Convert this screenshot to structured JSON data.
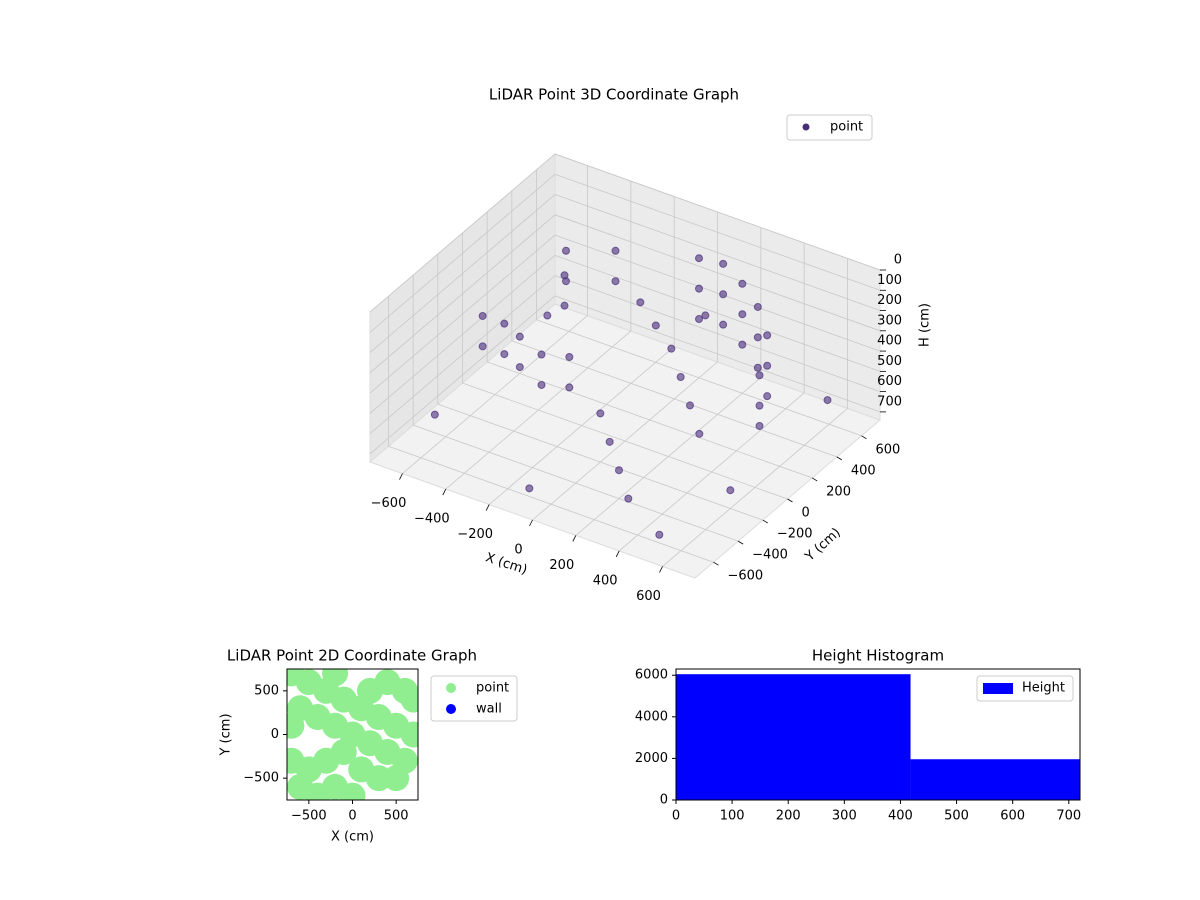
{
  "chart_data": [
    {
      "type": "scatter3d",
      "title": "LiDAR Point 3D Coordinate Graph",
      "x_label": "X (cm)",
      "y_label": "Y (cm)",
      "z_label": "H (cm)",
      "xlim": [
        -750,
        750
      ],
      "ylim": [
        -750,
        750
      ],
      "zlim": [
        740,
        0
      ],
      "xticks": [
        {
          "value": -600,
          "label": "−600"
        },
        {
          "value": -400,
          "label": "−400"
        },
        {
          "value": -200,
          "label": "−200"
        },
        0,
        200,
        400,
        600
      ],
      "yticks": [
        {
          "value": -600,
          "label": "−600"
        },
        {
          "value": -400,
          "label": "−400"
        },
        {
          "value": -200,
          "label": "−200"
        },
        0,
        200,
        400,
        600
      ],
      "zticks": [
        0,
        100,
        200,
        300,
        400,
        500,
        600,
        700
      ],
      "grid": true,
      "legend": "upper right",
      "series": [
        {
          "name": "point",
          "color": "#472c7a",
          "x": [
            0,
            0,
            0,
            100,
            100,
            100,
            200,
            200,
            200,
            300,
            300,
            300,
            400,
            400,
            400,
            450,
            450,
            450,
            -500,
            -500,
            -450,
            -450,
            -300,
            -300,
            -600,
            -600,
            -500,
            -500,
            -400,
            -400,
            -300,
            -300,
            -200,
            -200,
            -100,
            0,
            100,
            200,
            300,
            400,
            200,
            0,
            100,
            200,
            300,
            -700,
            -650,
            500,
            600,
            -100,
            650
          ],
          "y": [
            600,
            600,
            600,
            620,
            620,
            620,
            600,
            600,
            600,
            550,
            550,
            550,
            450,
            450,
            450,
            300,
            300,
            300,
            400,
            400,
            300,
            300,
            450,
            450,
            -100,
            -100,
            -100,
            -100,
            -150,
            -150,
            -150,
            -150,
            -100,
            -100,
            300,
            250,
            200,
            100,
            0,
            -100,
            300,
            -200,
            -300,
            -400,
            -500,
            600,
            -400,
            -600,
            -200,
            -600,
            500
          ],
          "z": [
            150,
            300,
            450,
            150,
            300,
            450,
            200,
            350,
            500,
            250,
            400,
            550,
            300,
            450,
            600,
            400,
            550,
            650,
            200,
            350,
            250,
            400,
            150,
            300,
            300,
            450,
            300,
            450,
            300,
            450,
            350,
            500,
            350,
            500,
            250,
            300,
            350,
            400,
            450,
            500,
            200,
            500,
            550,
            600,
            650,
            700,
            650,
            700,
            650,
            700,
            550
          ]
        }
      ]
    },
    {
      "type": "scatter",
      "title": "LiDAR Point 2D Coordinate Graph",
      "x_label": "X (cm)",
      "y_label": "Y (cm)",
      "xlim": [
        -750,
        750
      ],
      "ylim": [
        -750,
        750
      ],
      "xticks": [
        {
          "value": -500,
          "label": "−500"
        },
        0,
        500
      ],
      "yticks": [
        {
          "value": -500,
          "label": "−500"
        },
        0,
        500
      ],
      "legend": "outside right",
      "series": [
        {
          "name": "point",
          "color": "#90ee90",
          "x": [
            -700,
            -500,
            -300,
            -100,
            100,
            300,
            500,
            700,
            -600,
            -400,
            -200,
            0,
            200,
            400,
            600,
            -700,
            -500,
            -300,
            -100,
            100,
            300,
            -600,
            -400,
            -200,
            500,
            600,
            -200,
            400,
            700,
            0,
            -700,
            200
          ],
          "y": [
            700,
            600,
            500,
            400,
            300,
            200,
            100,
            0,
            300,
            200,
            100,
            0,
            -100,
            -200,
            -300,
            -300,
            -400,
            -300,
            -200,
            -400,
            -500,
            -600,
            -700,
            -600,
            -500,
            500,
            700,
            600,
            400,
            -700,
            100,
            500
          ]
        },
        {
          "name": "wall",
          "color": "#0000ff",
          "x": [],
          "y": []
        }
      ]
    },
    {
      "type": "histogram",
      "title": "Height Histogram",
      "bins": [
        0,
        418,
        720
      ],
      "counts": [
        6050,
        1960
      ],
      "color": "#0000ff",
      "name": "Height",
      "xlim": [
        0,
        720
      ],
      "ylim": [
        0,
        6300
      ],
      "xticks": [
        0,
        100,
        200,
        300,
        400,
        500,
        600,
        700
      ],
      "yticks": [
        0,
        2000,
        4000,
        6000
      ],
      "legend": "upper right"
    }
  ]
}
